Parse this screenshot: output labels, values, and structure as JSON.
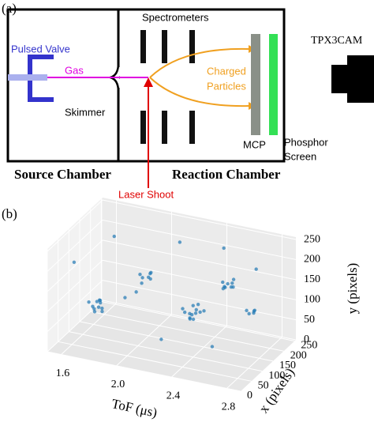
{
  "panel_a": {
    "panel_label": "(a)",
    "pulsed_valve": "Pulsed Valve",
    "gas": "Gas",
    "skimmer": "Skimmer",
    "spectrometers": "Spectrometers",
    "charged_particles": [
      "Charged",
      "Particles"
    ],
    "mcp": "MCP",
    "phosphor_screen": [
      "Phosphor",
      "Screen"
    ],
    "camera": "TPX3CAM",
    "source_chamber": "Source Chamber",
    "reaction_chamber": "Reaction Chamber",
    "laser": "Laser Shoot"
  },
  "chart_data": {
    "type": "scatter3d",
    "panel_label": "(b)",
    "color": "#1f77b4",
    "xlabel": "ToF (μs)",
    "ylabel": "x (pixels)",
    "zlabel": "y (pixels)",
    "xlim": [
      1.5,
      2.9
    ],
    "xticks": [
      {
        "value": 1.6,
        "label": "1.6"
      },
      {
        "value": 2.0,
        "label": "2.0"
      },
      2.4,
      2.8
    ],
    "ylim": [
      0,
      256
    ],
    "yticks": [
      0,
      50,
      100,
      150,
      200,
      250
    ],
    "zlim": [
      0,
      256
    ],
    "zticks": [
      0,
      50,
      100,
      150,
      200,
      250
    ],
    "x": [
      1.68,
      1.72,
      1.7,
      1.66,
      1.74,
      1.69,
      1.71,
      1.73,
      1.67,
      1.7,
      1.9,
      1.94,
      1.92,
      1.89,
      1.95,
      1.93,
      1.91,
      2.32,
      2.36,
      2.34,
      2.3,
      2.38,
      2.33,
      2.35,
      2.37,
      2.31,
      2.34,
      2.4,
      2.28,
      2.53,
      2.57,
      2.55,
      2.52,
      2.58,
      2.54,
      2.56,
      2.5,
      2.75,
      2.78,
      2.76,
      2.74,
      2.77,
      1.6,
      1.8,
      2.0,
      2.1,
      2.2,
      2.45,
      2.6,
      2.7,
      1.75,
      2.25,
      2.65,
      1.85
    ],
    "y": [
      95,
      105,
      110,
      90,
      100,
      120,
      85,
      98,
      108,
      102,
      185,
      195,
      200,
      180,
      190,
      205,
      175,
      135,
      140,
      150,
      125,
      145,
      130,
      155,
      120,
      142,
      138,
      150,
      128,
      165,
      172,
      180,
      160,
      170,
      155,
      185,
      175,
      135,
      142,
      150,
      130,
      145,
      60,
      220,
      40,
      230,
      80,
      210,
      60,
      200,
      150,
      190,
      100,
      30
    ],
    "z": [
      78,
      85,
      70,
      90,
      75,
      82,
      72,
      95,
      65,
      88,
      120,
      128,
      115,
      130,
      118,
      125,
      112,
      85,
      95,
      80,
      92,
      88,
      75,
      100,
      82,
      70,
      105,
      90,
      98,
      150,
      160,
      145,
      165,
      152,
      158,
      162,
      140,
      115,
      122,
      110,
      125,
      118,
      200,
      60,
      150,
      200,
      40,
      220,
      60,
      190,
      230,
      50,
      200,
      110
    ]
  }
}
